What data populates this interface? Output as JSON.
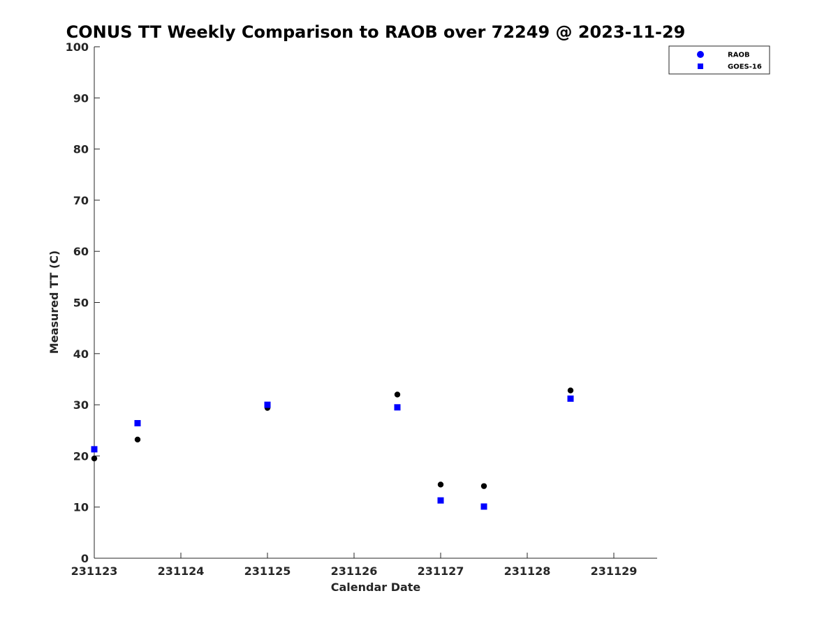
{
  "chart_data": {
    "type": "scatter",
    "title": "CONUS TT Weekly Comparison to RAOB over 72249 @ 2023-11-29",
    "xlabel": "Calendar Date",
    "ylabel": "Measured TT (C)",
    "ylim": [
      0,
      100
    ],
    "yticks": [
      "0",
      "10",
      "20",
      "30",
      "40",
      "50",
      "60",
      "70",
      "80",
      "90",
      "100"
    ],
    "xlim": [
      0,
      6.5
    ],
    "xticks": [
      "231123",
      "231124",
      "231125",
      "231126",
      "231127",
      "231128",
      "231129"
    ],
    "grid": false,
    "legend_position": "top-right",
    "series": [
      {
        "name": "RAOB",
        "color": "#000000",
        "legend_color": "#0000ff",
        "marker": "circle",
        "x": [
          0.0,
          0.5,
          2.0,
          3.5,
          4.0,
          4.5,
          5.5
        ],
        "y": [
          19.5,
          23.2,
          29.4,
          32.0,
          14.4,
          14.1,
          32.8
        ]
      },
      {
        "name": "GOES-16",
        "color": "#0000ff",
        "legend_color": "#0000ff",
        "marker": "square",
        "x": [
          0.0,
          0.5,
          2.0,
          3.5,
          4.0,
          4.5,
          5.5
        ],
        "y": [
          21.3,
          26.4,
          30.0,
          29.5,
          11.3,
          10.1,
          31.2
        ]
      }
    ]
  }
}
